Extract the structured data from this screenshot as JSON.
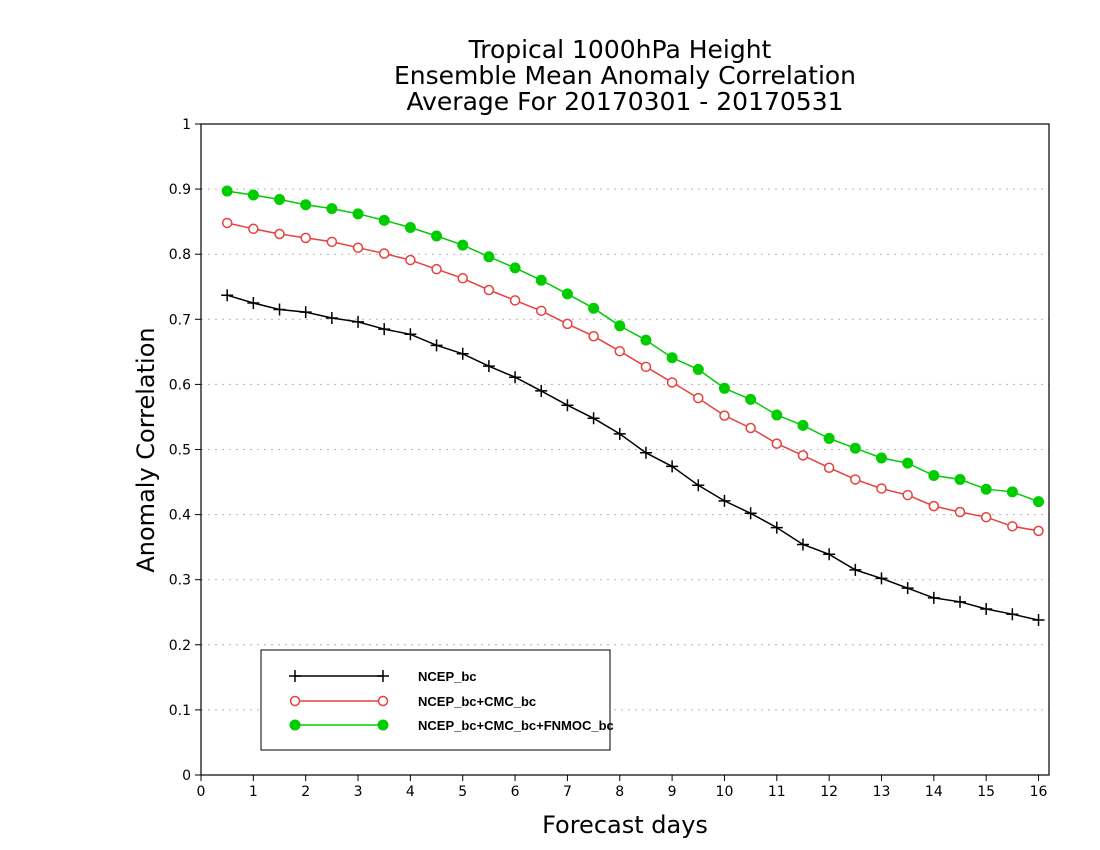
{
  "chart_data": {
    "type": "line",
    "title": [
      "Tropical 1000hPa Height",
      "Ensemble Mean Anomaly Correlation",
      "Average For 20170301 - 20170531"
    ],
    "xlabel": "Forecast days",
    "ylabel": "Anomaly Correlation",
    "xlim": [
      0,
      16.2
    ],
    "ylim": [
      0,
      1
    ],
    "xticks": [
      0,
      1,
      2,
      3,
      4,
      5,
      6,
      7,
      8,
      9,
      10,
      11,
      12,
      13,
      14,
      15,
      16
    ],
    "xtick_labels": [
      "0",
      "1",
      "2",
      "3",
      "4",
      "5",
      "6",
      "7",
      "8",
      "9",
      "10",
      "11",
      "12",
      "13",
      "14",
      "15",
      "16"
    ],
    "yticks": [
      0,
      0.1,
      0.2,
      0.3,
      0.4,
      0.5,
      0.6,
      0.7,
      0.8,
      0.9,
      1
    ],
    "ytick_labels": [
      "0",
      "0.1",
      "0.2",
      "0.3",
      "0.4",
      "0.5",
      "0.6",
      "0.7",
      "0.8",
      "0.9",
      "1"
    ],
    "grid": true,
    "legend_position": "bottom-left",
    "x": [
      0.5,
      1,
      1.5,
      2,
      2.5,
      3,
      3.5,
      4,
      4.5,
      5,
      5.5,
      6,
      6.5,
      7,
      7.5,
      8,
      8.5,
      9,
      9.5,
      10,
      10.5,
      11,
      11.5,
      12,
      12.5,
      13,
      13.5,
      14,
      14.5,
      15,
      15.5,
      16
    ],
    "series": [
      {
        "name": "NCEP_bc",
        "color": "#000000",
        "marker": "plus",
        "values": [
          0.737,
          0.725,
          0.715,
          0.711,
          0.702,
          0.696,
          0.685,
          0.677,
          0.66,
          0.647,
          0.628,
          0.611,
          0.59,
          0.568,
          0.548,
          0.524,
          0.495,
          0.474,
          0.445,
          0.421,
          0.402,
          0.38,
          0.354,
          0.339,
          0.315,
          0.302,
          0.287,
          0.272,
          0.266,
          0.255,
          0.247,
          0.238
        ]
      },
      {
        "name": "NCEP_bc+CMC_bc",
        "color": "#e8403c",
        "marker": "open-circle",
        "values": [
          0.848,
          0.839,
          0.831,
          0.825,
          0.819,
          0.81,
          0.801,
          0.791,
          0.777,
          0.763,
          0.745,
          0.729,
          0.713,
          0.693,
          0.674,
          0.651,
          0.627,
          0.603,
          0.579,
          0.552,
          0.533,
          0.509,
          0.491,
          0.472,
          0.454,
          0.44,
          0.43,
          0.413,
          0.404,
          0.396,
          0.382,
          0.375
        ]
      },
      {
        "name": "NCEP_bc+CMC_bc+FNMOC_bc",
        "color": "#00cc00",
        "marker": "filled-circle",
        "values": [
          0.897,
          0.891,
          0.884,
          0.876,
          0.87,
          0.862,
          0.852,
          0.841,
          0.828,
          0.814,
          0.796,
          0.779,
          0.76,
          0.739,
          0.717,
          0.69,
          0.668,
          0.641,
          0.623,
          0.594,
          0.577,
          0.553,
          0.537,
          0.517,
          0.502,
          0.487,
          0.479,
          0.46,
          0.454,
          0.439,
          0.435,
          0.42
        ]
      }
    ]
  }
}
